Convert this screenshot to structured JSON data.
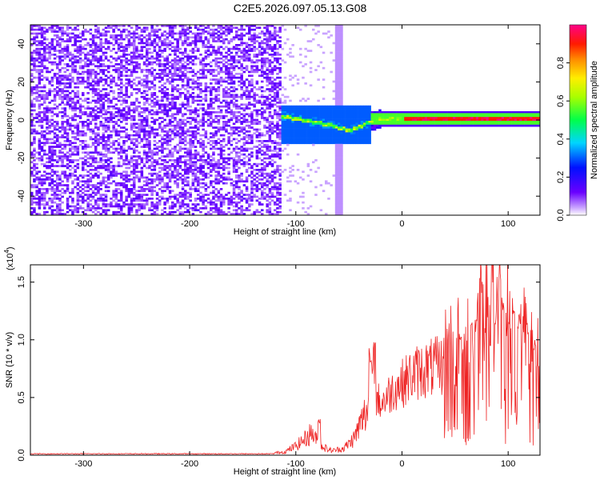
{
  "title": "C2E5.2026.097.05.13.G08",
  "chart_data": [
    {
      "type": "heatmap",
      "xlabel": "Height of straight line (km)",
      "ylabel": "Frequency (Hz)",
      "xlim": [
        -350,
        130
      ],
      "ylim": [
        -50,
        50
      ],
      "x_ticks": [
        -300,
        -200,
        -100,
        0,
        100
      ],
      "y_ticks": [
        -40,
        -20,
        0,
        20,
        40
      ],
      "grid": false,
      "colorbar": {
        "label": "Normalized spectral amplitude",
        "range": [
          0.0,
          1.0
        ],
        "ticks": [
          0.0,
          0.2,
          0.4,
          0.6,
          0.8
        ],
        "colormap": "rainbow (violet-blue-cyan-green-yellow-red-magenta)"
      },
      "regions": [
        {
          "x": [
            -350,
            -115
          ],
          "freq": [
            -50,
            50
          ],
          "amplitude": 0.08,
          "description": "broadband"
        },
        {
          "x": [
            -115,
            -30
          ],
          "freq": [
            -12,
            8
          ],
          "amplitude": 0.3
        },
        {
          "x": [
            -64,
            -56
          ],
          "freq": [
            -50,
            50
          ],
          "amplitude": 0.05
        },
        {
          "x": [
            -30,
            130
          ],
          "freq": [
            -2,
            4
          ],
          "amplitude": 0.55
        },
        {
          "x": [
            0,
            130
          ],
          "freq": [
            0,
            2
          ],
          "amplitude": 0.9
        }
      ],
      "ridge": {
        "x": [
          -110,
          -100,
          -90,
          -80,
          -70,
          -60,
          -50,
          -40,
          -30,
          -20,
          -10,
          0,
          20,
          40,
          60,
          80,
          100,
          130
        ],
        "freq": [
          2,
          1,
          0,
          -1,
          -2,
          -4,
          -5,
          -3,
          0,
          1,
          1,
          1.5,
          1.5,
          1.5,
          1.5,
          1.5,
          1.5,
          1.5
        ]
      }
    },
    {
      "type": "line",
      "xlabel": "Height of straight line (km)",
      "ylabel": "SNR (10 * v/v)",
      "y_multiplier": "(x10",
      "y_multiplier_exponent": "4",
      "y_multiplier_close": ")",
      "xlim": [
        -350,
        130
      ],
      "ylim": [
        0.0,
        1.65
      ],
      "x_ticks": [
        -300,
        -200,
        -100,
        0,
        100
      ],
      "y_ticks": [
        0.0,
        0.5,
        1.0,
        1.5
      ],
      "grid": false,
      "color": "#ee2222",
      "series": [
        {
          "x": [
            -350,
            -300,
            -250,
            -200,
            -150,
            -120,
            -110,
            -100,
            -90,
            -85,
            -80,
            -75,
            -70,
            -65,
            -60,
            -55,
            -50,
            -45,
            -40,
            -35,
            -30,
            -28,
            -25,
            -20,
            -15,
            -10,
            -5,
            0,
            5,
            10,
            15,
            20,
            25,
            30,
            35,
            40,
            45,
            50,
            55,
            60,
            65,
            70,
            75,
            80,
            85,
            90,
            95,
            100,
            105,
            110,
            115,
            120,
            125,
            130
          ],
          "y": [
            0.01,
            0.01,
            0.01,
            0.01,
            0.01,
            0.02,
            0.03,
            0.08,
            0.15,
            0.2,
            0.12,
            0.08,
            0.05,
            0.04,
            0.05,
            0.06,
            0.1,
            0.15,
            0.25,
            0.35,
            0.45,
            0.7,
            0.5,
            0.45,
            0.5,
            0.55,
            0.6,
            0.62,
            0.66,
            0.7,
            0.72,
            0.74,
            0.75,
            0.76,
            0.77,
            0.78,
            0.76,
            0.75,
            0.72,
            0.75,
            0.82,
            0.85,
            0.9,
            0.95,
            1.0,
            1.05,
            1.0,
            0.95,
            0.9,
            0.85,
            0.8,
            0.75,
            0.72,
            0.7
          ],
          "peaks": {
            "x": [
              -78,
              -30,
              -26,
              55,
              70,
              80,
              85,
              88,
              92,
              95,
              100,
              105,
              110,
              118,
              125,
              128
            ],
            "y": [
              0.32,
              0.95,
              1.0,
              1.08,
              1.25,
              1.38,
              1.55,
              1.32,
              1.65,
              1.48,
              1.2,
              1.35,
              1.28,
              1.15,
              1.0,
              0.9
            ]
          }
        }
      ]
    }
  ]
}
